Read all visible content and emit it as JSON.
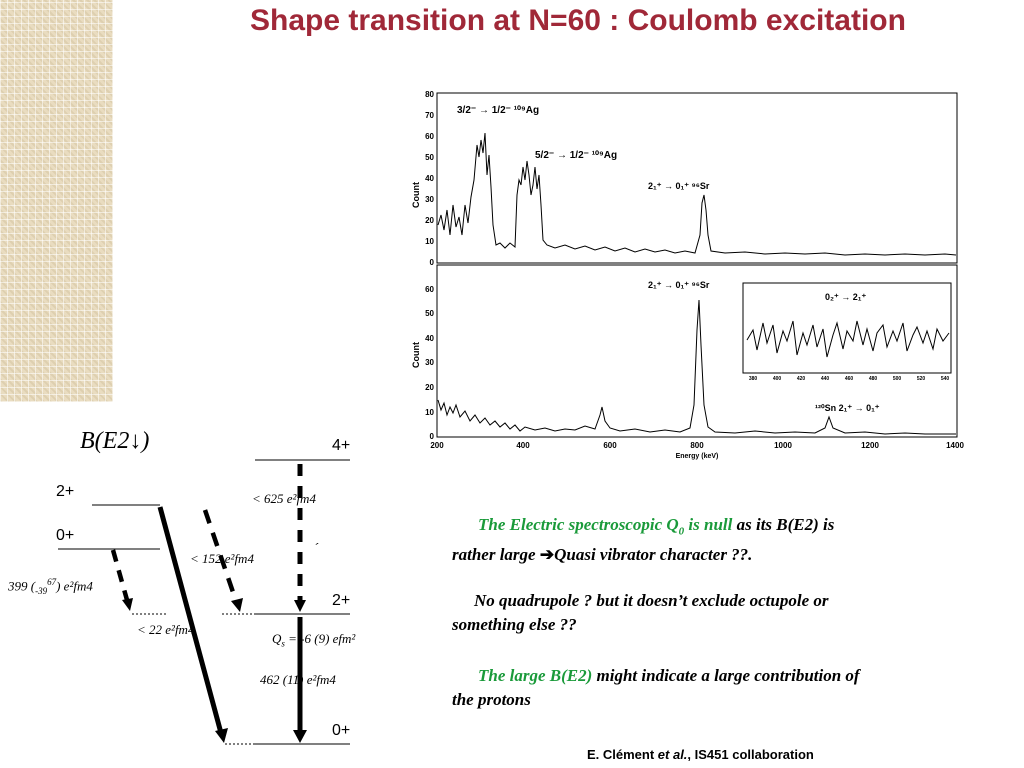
{
  "slide": {
    "title": "Shape transition at N=60 : Coulomb excitation"
  },
  "level_scheme": {
    "heading": "B(E2↓)",
    "levels_right": [
      "4+",
      "2+",
      "0+"
    ],
    "levels_left": [
      "2+",
      "0+"
    ],
    "values": {
      "v625": "<   625 e²fm4",
      "v152": "<   152 e²fm4",
      "v399_a": "399 (",
      "v399_sub": "-39",
      "v399_sup": "67",
      "v399_b": ") e²fm4",
      "v22": "<   22 e²fm4",
      "qs_sym": "Q",
      "qs_sub": "s",
      "qs_val": " = -6 (9) efm²",
      "v462": "462  (11) e²fm4",
      "tick": "´"
    }
  },
  "spectrum": {
    "top_panel": {
      "y_label": "Count",
      "y_ticks": [
        "80",
        "70",
        "60",
        "50",
        "40",
        "30",
        "20",
        "10",
        "0"
      ],
      "annotation_ag1": "3/2⁻ → 1/2⁻ ¹⁰⁹Ag",
      "annotation_ag2": "5/2⁻ → 1/2⁻ ¹⁰⁹Ag",
      "annotation_sr": "2₁⁺ → 0₁⁺ ⁹⁶Sr"
    },
    "bottom_panel": {
      "y_label": "Count",
      "y_ticks": [
        "60",
        "50",
        "40",
        "30",
        "20",
        "10",
        "0"
      ],
      "annotation_sr": "2₁⁺ → 0₁⁺ ⁹⁶Sr",
      "annotation_sn": "¹²⁰Sn 2₁⁺ → 0₁⁺",
      "x_ticks": [
        "200",
        "400",
        "600",
        "800",
        "1000",
        "1200",
        "1400"
      ],
      "x_label": "Energy (keV)"
    },
    "inset": {
      "annotation": "0₂⁺ → 2₁⁺",
      "x_ticks": [
        "380",
        "400",
        "420",
        "440",
        "460",
        "480",
        "500",
        "520",
        "540"
      ]
    }
  },
  "text": {
    "p1_green1": "The Electric spectroscopic ",
    "p1_q": "Q",
    "p1_q_sub": "0",
    "p1_green2": " is null",
    "p1_rest1": " as its B(E2) is",
    "p1_line2a": "rather large ",
    "p1_arrow": "➔",
    "p1_line2b": "Quasi vibrator character ??.",
    "p2_line1": "No quadrupole ? but it doesn’t exclude octupole or",
    "p2_line2": "something else ??",
    "p3_green": "The large B(E2)",
    "p3_rest1": " might indicate a large contribution of",
    "p3_line2": "the protons"
  },
  "credit": {
    "author": "E. Clément ",
    "etal": "et al.",
    "collab": ", IS451 collaboration"
  },
  "colors": {
    "title": "#a02838",
    "highlight": "#1a9a3a",
    "texture": "#e9dcc0"
  }
}
